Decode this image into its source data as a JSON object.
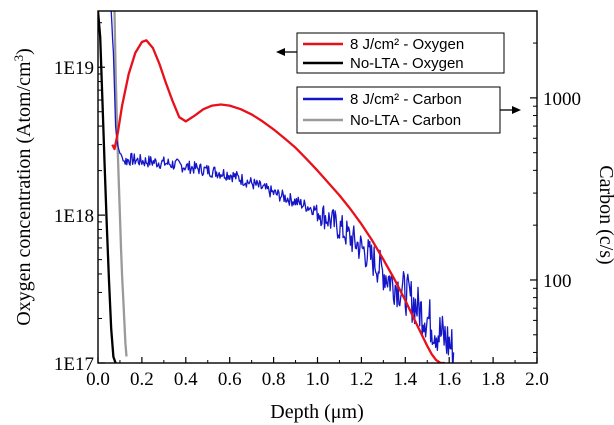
{
  "chart_data": {
    "type": "line",
    "xlabel": "Depth (μm)",
    "xlim": [
      0.0,
      2.0
    ],
    "xticks": [
      "0.0",
      "0.2",
      "0.4",
      "0.6",
      "0.8",
      "1.0",
      "1.2",
      "1.4",
      "1.6",
      "1.8",
      "2.0"
    ],
    "y_left": {
      "label": "Oxygen concentration (Atom/cm³)",
      "label_main": "Oxygen concentration (Atom/cm",
      "label_sup": "3",
      "label_close": ")",
      "scale": "log",
      "ylim": [
        1e+17,
        2.4e+19
      ],
      "ticks": [
        {
          "value": 1e+17,
          "label": "1E17"
        },
        {
          "value": 1e+18,
          "label": "1E18"
        },
        {
          "value": 1e+19,
          "label": "1E19"
        }
      ]
    },
    "y_right": {
      "label": "Carbon (c/s)",
      "scale": "log",
      "ylim": [
        35,
        3000
      ],
      "ticks": [
        {
          "value": 100,
          "label": "100"
        },
        {
          "value": 1000,
          "label": "1000"
        }
      ]
    },
    "legend_oxygen": [
      {
        "label": "8 J/cm² - Oxygen",
        "color": "#e8101a"
      },
      {
        "label": "No-LTA - Oxygen",
        "color": "#000000"
      }
    ],
    "legend_carbon": [
      {
        "label": "8 J/cm² - Carbon",
        "color": "#1515c8"
      },
      {
        "label": "No-LTA - Carbon",
        "color": "#9a9a9a"
      }
    ],
    "series": [
      {
        "name": "8 J/cm² - Oxygen",
        "axis": "left",
        "color": "#e8101a",
        "x": [
          0.065,
          0.075,
          0.09,
          0.11,
          0.14,
          0.17,
          0.2,
          0.22,
          0.25,
          0.28,
          0.31,
          0.34,
          0.37,
          0.4,
          0.44,
          0.48,
          0.52,
          0.56,
          0.6,
          0.65,
          0.7,
          0.75,
          0.8,
          0.85,
          0.9,
          0.95,
          1.0,
          1.05,
          1.1,
          1.15,
          1.2,
          1.25,
          1.3,
          1.35,
          1.4,
          1.45,
          1.48,
          1.5,
          1.52,
          1.54,
          1.56,
          1.58
        ],
        "y": [
          3e+18,
          2.8e+18,
          3.6e+18,
          5.5e+18,
          9e+18,
          1.25e+19,
          1.48e+19,
          1.52e+19,
          1.35e+19,
          1.05e+19,
          7.8e+18,
          5.9e+18,
          4.6e+18,
          4.3e+18,
          4.7e+18,
          5.2e+18,
          5.5e+18,
          5.6e+18,
          5.5e+18,
          5.2e+18,
          4.8e+18,
          4.3e+18,
          3.8e+18,
          3.3e+18,
          2.85e+18,
          2.4e+18,
          2e+18,
          1.65e+18,
          1.36e+18,
          1.1e+18,
          8.7e+17,
          6.7e+17,
          5e+17,
          3.7e+17,
          2.65e+17,
          1.85e+17,
          1.5e+17,
          1.3e+17,
          1.15e+17,
          1.05e+17,
          1e+17,
          1e+17
        ]
      },
      {
        "name": "No-LTA - Oxygen",
        "axis": "left",
        "color": "#000000",
        "x": [
          0.0,
          0.01,
          0.02,
          0.03,
          0.04,
          0.05,
          0.06,
          0.07,
          0.08
        ],
        "y": [
          2.4e+19,
          1.6e+19,
          6e+18,
          2.2e+18,
          8.5e+17,
          3.6e+17,
          1.7e+17,
          1.1e+17,
          1e+17
        ]
      },
      {
        "name": "8 J/cm² - Carbon",
        "axis": "right",
        "color": "#1515c8",
        "x": [
          0.06,
          0.07,
          0.08,
          0.09,
          0.1,
          0.11,
          0.12,
          0.15,
          0.2,
          0.3,
          0.4,
          0.5,
          0.6,
          0.7,
          0.8,
          0.9,
          1.0,
          1.1,
          1.15,
          1.2,
          1.25,
          1.3,
          1.35,
          1.4,
          1.45,
          1.5,
          1.55,
          1.6,
          1.62
        ],
        "y": [
          3000,
          1800,
          700,
          540,
          500,
          470,
          450,
          460,
          450,
          440,
          420,
          400,
          380,
          340,
          300,
          270,
          240,
          195,
          170,
          150,
          130,
          110,
          95,
          85,
          72,
          62,
          52,
          45,
          40
        ]
      },
      {
        "name": "No-LTA - Carbon",
        "axis": "right",
        "color": "#9a9a9a",
        "x": [
          0.075,
          0.08,
          0.085,
          0.09,
          0.095,
          0.1,
          0.105,
          0.11,
          0.115,
          0.12,
          0.125,
          0.13
        ],
        "y": [
          3000,
          1400,
          820,
          500,
          330,
          220,
          150,
          105,
          80,
          60,
          45,
          38
        ]
      }
    ]
  }
}
